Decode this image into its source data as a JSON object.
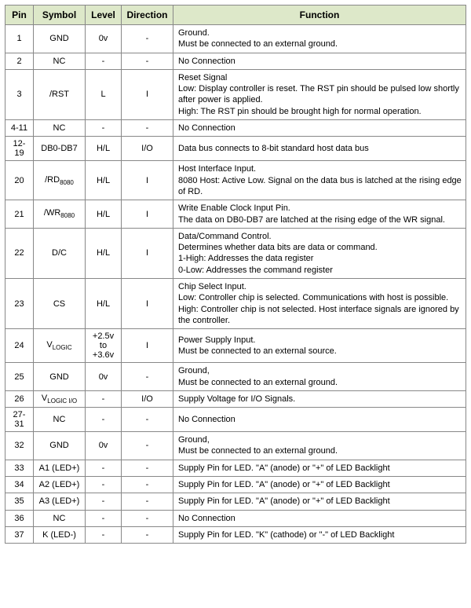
{
  "headers": {
    "pin": "Pin",
    "symbol": "Symbol",
    "level": "Level",
    "direction": "Direction",
    "function": "Function"
  },
  "rows": [
    {
      "pin": "1",
      "symbol": "GND",
      "level": "0v",
      "direction": "-",
      "function": "Ground.\nMust be connected to an external ground."
    },
    {
      "pin": "2",
      "symbol": "NC",
      "level": "-",
      "direction": "-",
      "function": "No Connection"
    },
    {
      "pin": "3",
      "symbol": "/RST",
      "level": "L",
      "direction": "I",
      "function": "Reset Signal\nLow: Display controller is reset. The RST pin should be pulsed low shortly after power is applied.\nHigh: The RST pin should be brought high for normal operation."
    },
    {
      "pin": "4-11",
      "symbol": "NC",
      "level": "-",
      "direction": "-",
      "function": "No Connection"
    },
    {
      "pin": "12-19",
      "symbol": "DB0-DB7",
      "level": "H/L",
      "direction": "I/O",
      "function": "Data bus connects to 8-bit standard host data bus"
    },
    {
      "pin": "20",
      "symbol_html": "/RD<span class='sub'>8080</span>",
      "level": "H/L",
      "direction": "I",
      "function": "Host Interface Input.\n8080 Host: Active Low. Signal on the data bus is latched at the rising edge of RD."
    },
    {
      "pin": "21",
      "symbol_html": "/WR<span class='sub'>8080</span>",
      "level": "H/L",
      "direction": "I",
      "function": "Write Enable Clock Input Pin.\nThe data on DB0-DB7 are latched at the rising edge of the WR signal."
    },
    {
      "pin": "22",
      "symbol": "D/C",
      "level": "H/L",
      "direction": "I",
      "function": "Data/Command Control.\nDetermines whether data bits are data or command.\n1-High: Addresses the data register\n0-Low: Addresses the command register"
    },
    {
      "pin": "23",
      "symbol": "CS",
      "level": "H/L",
      "direction": "I",
      "function": "Chip Select Input.\nLow: Controller chip is selected. Communications with host is possible.\nHigh: Controller chip is not selected. Host interface signals are ignored by the controller."
    },
    {
      "pin": "24",
      "symbol_html": "V<span class='sub'>LOGIC</span>",
      "level": "+2.5v\nto\n+3.6v",
      "direction": "I",
      "function": "Power Supply Input.\nMust be connected to an external source."
    },
    {
      "pin": "25",
      "symbol": "GND",
      "level": "0v",
      "direction": "-",
      "function": "Ground,\nMust be connected to an external ground."
    },
    {
      "pin": "26",
      "symbol_html": "V<span class='sub'>LOGIC I/O</span>",
      "level": "-",
      "direction": "I/O",
      "function": "Supply Voltage for I/O Signals."
    },
    {
      "pin": "27-31",
      "symbol": "NC",
      "level": "-",
      "direction": "-",
      "function": "No Connection"
    },
    {
      "pin": "32",
      "symbol": "GND",
      "level": "0v",
      "direction": "-",
      "function": "Ground,\nMust be connected to an external ground."
    },
    {
      "pin": "33",
      "symbol": "A1 (LED+)",
      "level": "-",
      "direction": "-",
      "function": "Supply Pin for LED. \"A\" (anode) or \"+\" of LED Backlight"
    },
    {
      "pin": "34",
      "symbol": "A2 (LED+)",
      "level": "-",
      "direction": "-",
      "function": "Supply Pin for LED. \"A\" (anode) or \"+\" of LED Backlight"
    },
    {
      "pin": "35",
      "symbol": "A3 (LED+)",
      "level": "-",
      "direction": "-",
      "function": "Supply Pin for LED. \"A\" (anode) or \"+\" of LED Backlight"
    },
    {
      "pin": "36",
      "symbol": "NC",
      "level": "-",
      "direction": "-",
      "function": "No Connection"
    },
    {
      "pin": "37",
      "symbol": "K (LED-)",
      "level": "-",
      "direction": "-",
      "function": "Supply Pin for LED. \"K\" (cathode) or \"-\" of LED Backlight"
    }
  ]
}
